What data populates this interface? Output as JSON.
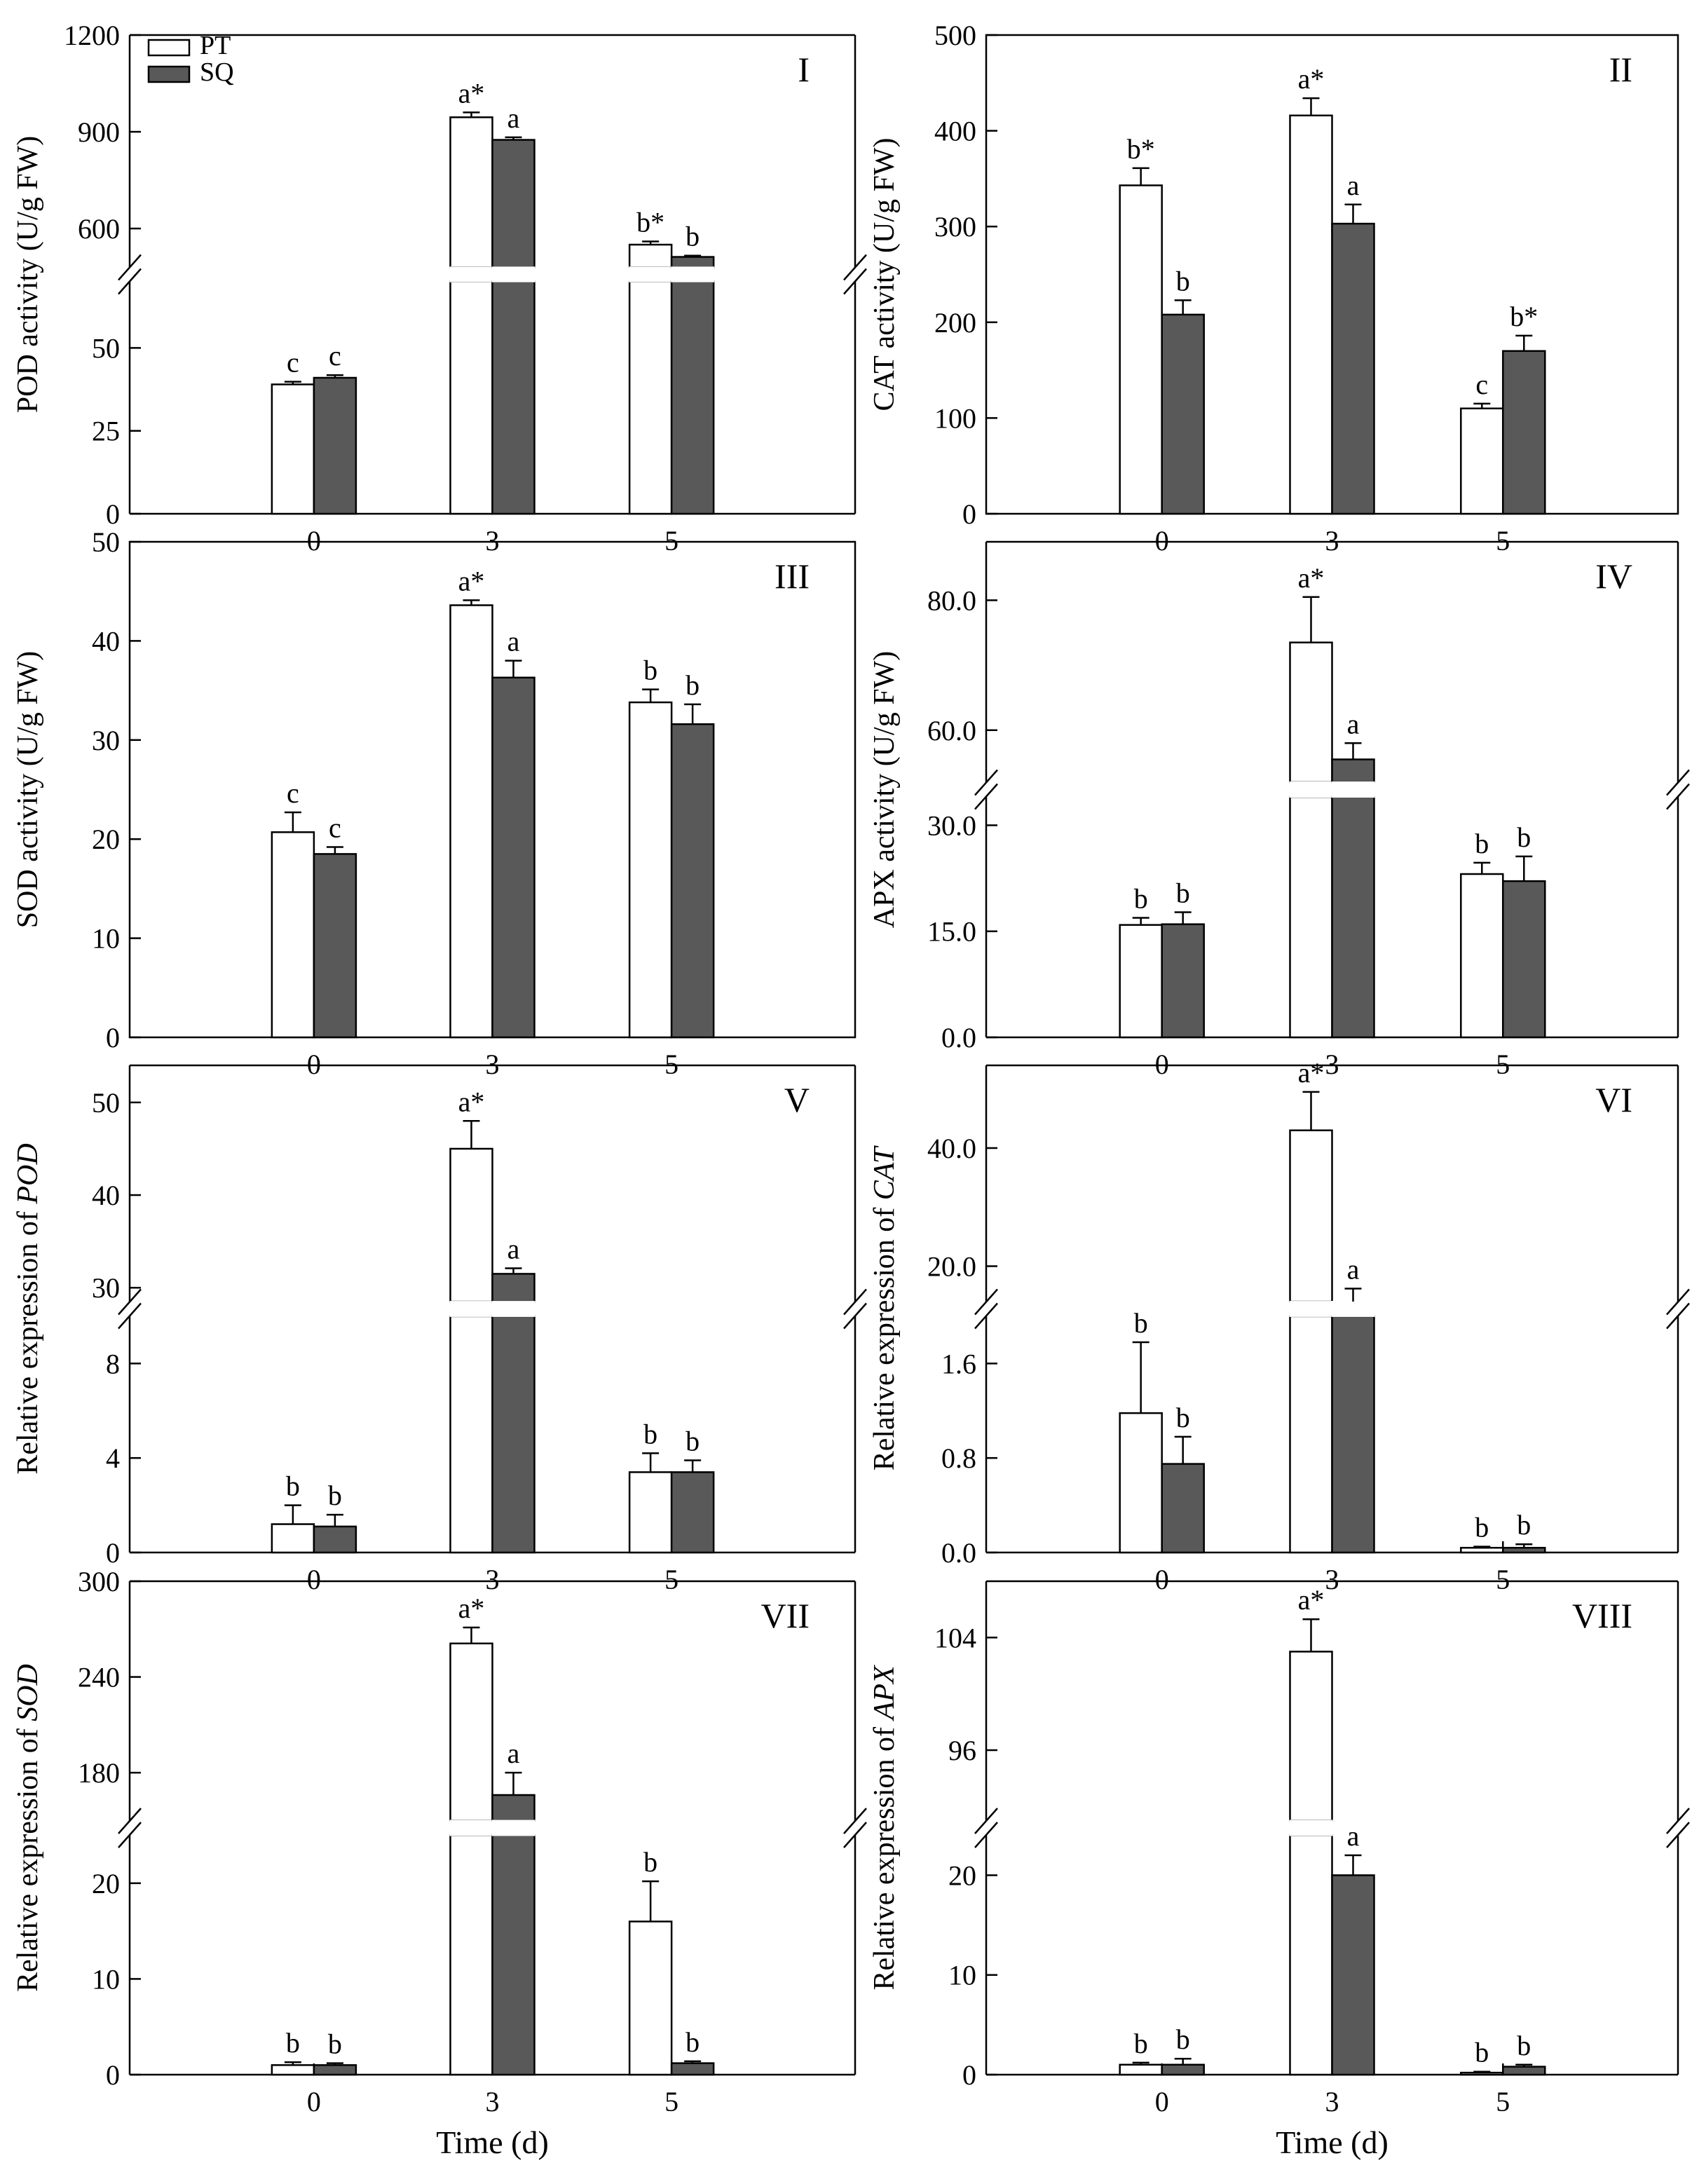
{
  "figure": {
    "xlabel": "Time (d)",
    "categories": [
      "0",
      "3",
      "5"
    ],
    "legend": [
      {
        "name": "PT",
        "color": "#ffffff"
      },
      {
        "name": "SQ",
        "color": "#595959"
      }
    ]
  },
  "chart_data": [
    {
      "type": "bar",
      "panel": "I",
      "ylabel_plain": "POD activity (U/g FW)",
      "ylabel_prefix": "",
      "ylabel_gene": "",
      "categories": [
        "0",
        "3",
        "5"
      ],
      "axis_break": {
        "lower": [
          0,
          70
        ],
        "upper": [
          480,
          1200
        ]
      },
      "lower_ticks": [
        0,
        25,
        50
      ],
      "upper_ticks": [
        600,
        900,
        1200
      ],
      "tick_decimals": 0,
      "series": [
        {
          "name": "PT",
          "values": [
            39,
            945,
            550
          ],
          "errors": [
            0.8,
            15,
            10
          ],
          "labels": [
            "c",
            "a*",
            "b*"
          ]
        },
        {
          "name": "SQ",
          "values": [
            41,
            875,
            512
          ],
          "errors": [
            0.8,
            8,
            4
          ],
          "labels": [
            "c",
            "a",
            "b"
          ]
        }
      ],
      "legend": "top-left"
    },
    {
      "type": "bar",
      "panel": "II",
      "ylabel_plain": "CAT activity (U/g FW)",
      "ylabel_prefix": "",
      "ylabel_gene": "",
      "categories": [
        "0",
        "3",
        "5"
      ],
      "ylim": [
        0,
        500
      ],
      "ticks": [
        0,
        100,
        200,
        300,
        400,
        500
      ],
      "tick_decimals": 0,
      "series": [
        {
          "name": "PT",
          "values": [
            343,
            416,
            110
          ],
          "errors": [
            18,
            18,
            5
          ],
          "labels": [
            "b*",
            "a*",
            "c"
          ]
        },
        {
          "name": "SQ",
          "values": [
            208,
            303,
            170
          ],
          "errors": [
            15,
            20,
            16
          ],
          "labels": [
            "b",
            "a",
            "b*"
          ]
        }
      ]
    },
    {
      "type": "bar",
      "panel": "III",
      "ylabel_plain": "SOD activity (U/g FW)",
      "ylabel_prefix": "",
      "ylabel_gene": "",
      "categories": [
        "0",
        "3",
        "5"
      ],
      "ylim": [
        0,
        50
      ],
      "ticks": [
        0,
        10,
        20,
        30,
        40,
        50
      ],
      "tick_decimals": 0,
      "series": [
        {
          "name": "PT",
          "values": [
            20.7,
            43.6,
            33.8
          ],
          "errors": [
            2.0,
            0.5,
            1.3
          ],
          "labels": [
            "c",
            "a*",
            "b"
          ]
        },
        {
          "name": "SQ",
          "values": [
            18.5,
            36.3,
            31.6
          ],
          "errors": [
            0.7,
            1.7,
            2.0
          ],
          "labels": [
            "c",
            "a",
            "b"
          ]
        }
      ]
    },
    {
      "type": "bar",
      "panel": "IV",
      "ylabel_plain": "APX activity (U/g FW)",
      "ylabel_prefix": "",
      "ylabel_gene": "",
      "categories": [
        "0",
        "3",
        "5"
      ],
      "axis_break": {
        "lower": [
          0,
          34
        ],
        "upper": [
          52,
          89
        ]
      },
      "lower_ticks": [
        0.0,
        15.0,
        30.0
      ],
      "upper_ticks": [
        60.0,
        80.0
      ],
      "tick_decimals": 1,
      "series": [
        {
          "name": "PT",
          "values": [
            15.9,
            73.5,
            23.1
          ],
          "errors": [
            1.0,
            7.0,
            1.6
          ],
          "labels": [
            "b",
            "a*",
            "b"
          ]
        },
        {
          "name": "SQ",
          "values": [
            16.0,
            55.5,
            22.1
          ],
          "errors": [
            1.7,
            2.5,
            3.5
          ],
          "labels": [
            "b",
            "a",
            "b"
          ]
        }
      ]
    },
    {
      "type": "bar",
      "panel": "V",
      "ylabel_plain": "",
      "ylabel_prefix": "Relative expression of ",
      "ylabel_gene": "POD",
      "categories": [
        "0",
        "3",
        "5"
      ],
      "axis_break": {
        "lower": [
          0,
          10
        ],
        "upper": [
          28.5,
          54
        ]
      },
      "lower_ticks": [
        0,
        4,
        8
      ],
      "upper_ticks": [
        30,
        40,
        50
      ],
      "tick_decimals": 0,
      "series": [
        {
          "name": "PT",
          "values": [
            1.2,
            45.0,
            3.4
          ],
          "errors": [
            0.8,
            3.0,
            0.8
          ],
          "labels": [
            "b",
            "a*",
            "b"
          ]
        },
        {
          "name": "SQ",
          "values": [
            1.1,
            31.5,
            3.4
          ],
          "errors": [
            0.5,
            0.6,
            0.5
          ],
          "labels": [
            "b",
            "a",
            "b"
          ]
        }
      ]
    },
    {
      "type": "bar",
      "panel": "VI",
      "ylabel_plain": "",
      "ylabel_prefix": "Relative expression of ",
      "ylabel_gene": "CAT",
      "categories": [
        "0",
        "3",
        "5"
      ],
      "axis_break": {
        "lower": [
          0,
          2.0
        ],
        "upper": [
          14,
          54
        ]
      },
      "lower_ticks": [
        0.0,
        0.8,
        1.6
      ],
      "upper_ticks": [
        20.0,
        40.0
      ],
      "tick_decimals": 1,
      "series": [
        {
          "name": "PT",
          "values": [
            1.18,
            43.0,
            0.04
          ],
          "errors": [
            0.6,
            6.5,
            0.01
          ],
          "labels": [
            "b",
            "a*",
            "b"
          ]
        },
        {
          "name": "SQ",
          "values": [
            0.75,
            13.2,
            0.04
          ],
          "errors": [
            0.23,
            3.0,
            0.03
          ],
          "labels": [
            "b",
            "a",
            "b"
          ]
        }
      ]
    },
    {
      "type": "bar",
      "panel": "VII",
      "ylabel_plain": "",
      "ylabel_prefix": "Relative expression of ",
      "ylabel_gene": "SOD",
      "categories": [
        "0",
        "3",
        "5"
      ],
      "axis_break": {
        "lower": [
          0,
          25
        ],
        "upper": [
          150,
          300
        ]
      },
      "lower_ticks": [
        0,
        10,
        20
      ],
      "upper_ticks": [
        180,
        240,
        300
      ],
      "tick_decimals": 0,
      "series": [
        {
          "name": "PT",
          "values": [
            1.0,
            261,
            16.0
          ],
          "errors": [
            0.3,
            10,
            4.2
          ],
          "labels": [
            "b",
            "a*",
            "b"
          ]
        },
        {
          "name": "SQ",
          "values": [
            1.0,
            166,
            1.2
          ],
          "errors": [
            0.2,
            14,
            0.2
          ],
          "labels": [
            "b",
            "a",
            "b"
          ]
        }
      ]
    },
    {
      "type": "bar",
      "panel": "VIII",
      "ylabel_plain": "",
      "ylabel_prefix": "Relative expression of ",
      "ylabel_gene": "APX",
      "categories": [
        "0",
        "3",
        "5"
      ],
      "axis_break": {
        "lower": [
          0,
          24
        ],
        "upper": [
          91,
          108
        ]
      },
      "lower_ticks": [
        0,
        10,
        20
      ],
      "upper_ticks": [
        96,
        104
      ],
      "tick_decimals": 0,
      "series": [
        {
          "name": "PT",
          "values": [
            1.0,
            103,
            0.2
          ],
          "errors": [
            0.2,
            2.3,
            0.1
          ],
          "labels": [
            "b",
            "a*",
            "b"
          ]
        },
        {
          "name": "SQ",
          "values": [
            1.0,
            20.0,
            0.8
          ],
          "errors": [
            0.6,
            2.0,
            0.2
          ],
          "labels": [
            "b",
            "a",
            "b"
          ]
        }
      ]
    }
  ]
}
